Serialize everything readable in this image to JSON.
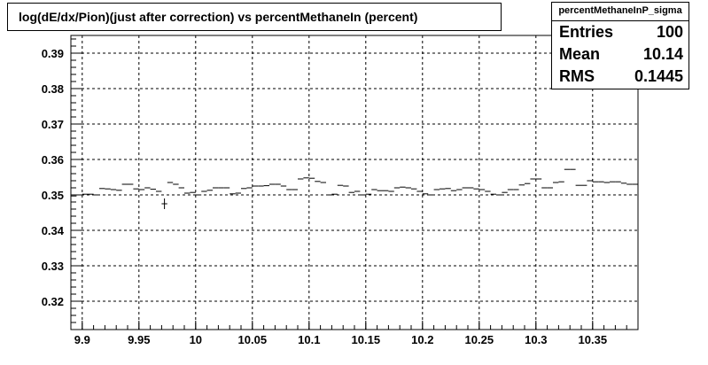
{
  "chart_data": {
    "type": "scatter",
    "title": "log(dE/dx/Pion)(just after correction) vs percentMethaneIn (percent)",
    "xlim": [
      9.89,
      10.39
    ],
    "ylim": [
      0.312,
      0.395
    ],
    "x_ticks": [
      9.9,
      9.95,
      10,
      10.05,
      10.1,
      10.15,
      10.2,
      10.25,
      10.3,
      10.35
    ],
    "x_tick_labels": [
      "9.9",
      "9.95",
      "10",
      "10.05",
      "10.1",
      "10.15",
      "10.2",
      "10.25",
      "10.3",
      "10.35"
    ],
    "y_ticks": [
      0.32,
      0.33,
      0.34,
      0.35,
      0.36,
      0.37,
      0.38,
      0.39
    ],
    "y_tick_labels": [
      "0.32",
      "0.33",
      "0.34",
      "0.35",
      "0.36",
      "0.37",
      "0.38",
      "0.39"
    ],
    "grid": true,
    "points": [
      {
        "x": 9.8925,
        "y": 0.3497
      },
      {
        "x": 9.8975,
        "y": 0.35
      },
      {
        "x": 9.9025,
        "y": 0.3502
      },
      {
        "x": 9.9075,
        "y": 0.3502
      },
      {
        "x": 9.9125,
        "y": 0.35
      },
      {
        "x": 9.9175,
        "y": 0.3518
      },
      {
        "x": 9.9225,
        "y": 0.3517
      },
      {
        "x": 9.9275,
        "y": 0.3515
      },
      {
        "x": 9.9325,
        "y": 0.3513
      },
      {
        "x": 9.9375,
        "y": 0.353
      },
      {
        "x": 9.9425,
        "y": 0.353
      },
      {
        "x": 9.9475,
        "y": 0.3517
      },
      {
        "x": 9.9525,
        "y": 0.3515
      },
      {
        "x": 9.9575,
        "y": 0.352
      },
      {
        "x": 9.9625,
        "y": 0.3516
      },
      {
        "x": 9.9675,
        "y": 0.351
      },
      {
        "x": 9.9725,
        "y": 0.3475,
        "err": 0.0015
      },
      {
        "x": 9.9775,
        "y": 0.3535
      },
      {
        "x": 9.9825,
        "y": 0.353
      },
      {
        "x": 9.9875,
        "y": 0.352
      },
      {
        "x": 9.9925,
        "y": 0.3505
      },
      {
        "x": 9.9975,
        "y": 0.3507
      },
      {
        "x": 10.0025,
        "y": 0.35
      },
      {
        "x": 10.0075,
        "y": 0.351
      },
      {
        "x": 10.0125,
        "y": 0.3513
      },
      {
        "x": 10.0175,
        "y": 0.352
      },
      {
        "x": 10.0225,
        "y": 0.352
      },
      {
        "x": 10.0275,
        "y": 0.352
      },
      {
        "x": 10.0325,
        "y": 0.3503
      },
      {
        "x": 10.0375,
        "y": 0.3505
      },
      {
        "x": 10.0425,
        "y": 0.3518
      },
      {
        "x": 10.0475,
        "y": 0.352
      },
      {
        "x": 10.0525,
        "y": 0.3525
      },
      {
        "x": 10.0575,
        "y": 0.3525
      },
      {
        "x": 10.0625,
        "y": 0.3526
      },
      {
        "x": 10.0675,
        "y": 0.353
      },
      {
        "x": 10.0725,
        "y": 0.353
      },
      {
        "x": 10.0775,
        "y": 0.3525
      },
      {
        "x": 10.0825,
        "y": 0.3515
      },
      {
        "x": 10.0875,
        "y": 0.3515
      },
      {
        "x": 10.0925,
        "y": 0.3545
      },
      {
        "x": 10.0975,
        "y": 0.3548
      },
      {
        "x": 10.1025,
        "y": 0.3547
      },
      {
        "x": 10.1075,
        "y": 0.3538
      },
      {
        "x": 10.1125,
        "y": 0.3535
      },
      {
        "x": 10.1175,
        "y": 0.35
      },
      {
        "x": 10.1225,
        "y": 0.3502
      },
      {
        "x": 10.1275,
        "y": 0.3527
      },
      {
        "x": 10.1325,
        "y": 0.3525
      },
      {
        "x": 10.1375,
        "y": 0.3507
      },
      {
        "x": 10.1425,
        "y": 0.351
      },
      {
        "x": 10.1475,
        "y": 0.35
      },
      {
        "x": 10.1525,
        "y": 0.3502
      },
      {
        "x": 10.1575,
        "y": 0.3515
      },
      {
        "x": 10.1625,
        "y": 0.3512
      },
      {
        "x": 10.1675,
        "y": 0.3512
      },
      {
        "x": 10.1725,
        "y": 0.351
      },
      {
        "x": 10.1775,
        "y": 0.352
      },
      {
        "x": 10.1825,
        "y": 0.3522
      },
      {
        "x": 10.1875,
        "y": 0.352
      },
      {
        "x": 10.1925,
        "y": 0.3517
      },
      {
        "x": 10.1975,
        "y": 0.351
      },
      {
        "x": 10.2025,
        "y": 0.3503
      },
      {
        "x": 10.2075,
        "y": 0.35
      },
      {
        "x": 10.2125,
        "y": 0.3515
      },
      {
        "x": 10.2175,
        "y": 0.3517
      },
      {
        "x": 10.2225,
        "y": 0.3518
      },
      {
        "x": 10.2275,
        "y": 0.3512
      },
      {
        "x": 10.2325,
        "y": 0.3515
      },
      {
        "x": 10.2375,
        "y": 0.352
      },
      {
        "x": 10.2425,
        "y": 0.352
      },
      {
        "x": 10.2475,
        "y": 0.3517
      },
      {
        "x": 10.2525,
        "y": 0.3515
      },
      {
        "x": 10.2575,
        "y": 0.351
      },
      {
        "x": 10.2625,
        "y": 0.3502
      },
      {
        "x": 10.2675,
        "y": 0.35
      },
      {
        "x": 10.2725,
        "y": 0.3507
      },
      {
        "x": 10.2775,
        "y": 0.3515
      },
      {
        "x": 10.2825,
        "y": 0.3515
      },
      {
        "x": 10.2875,
        "y": 0.3528
      },
      {
        "x": 10.2925,
        "y": 0.3532
      },
      {
        "x": 10.2975,
        "y": 0.3545
      },
      {
        "x": 10.3025,
        "y": 0.3545
      },
      {
        "x": 10.3075,
        "y": 0.352
      },
      {
        "x": 10.3125,
        "y": 0.352
      },
      {
        "x": 10.3175,
        "y": 0.3535
      },
      {
        "x": 10.3225,
        "y": 0.3537
      },
      {
        "x": 10.3275,
        "y": 0.3572
      },
      {
        "x": 10.3325,
        "y": 0.3572
      },
      {
        "x": 10.3375,
        "y": 0.3527
      },
      {
        "x": 10.3425,
        "y": 0.3527
      },
      {
        "x": 10.3475,
        "y": 0.354
      },
      {
        "x": 10.3525,
        "y": 0.3537
      },
      {
        "x": 10.3575,
        "y": 0.3537
      },
      {
        "x": 10.3625,
        "y": 0.3535
      },
      {
        "x": 10.3675,
        "y": 0.3537
      },
      {
        "x": 10.3725,
        "y": 0.3537
      },
      {
        "x": 10.3775,
        "y": 0.3533
      },
      {
        "x": 10.3825,
        "y": 0.353
      },
      {
        "x": 10.3875,
        "y": 0.353
      }
    ]
  },
  "stats": {
    "name": "percentMethaneInP_sigma",
    "entries_label": "Entries",
    "entries": "100",
    "mean_label": "Mean",
    "mean": "10.14",
    "rms_label": "RMS",
    "rms": "0.1445"
  },
  "colors": {
    "frame": "#000000",
    "grid": "#000000",
    "marker": "#000000",
    "background": "#ffffff"
  }
}
